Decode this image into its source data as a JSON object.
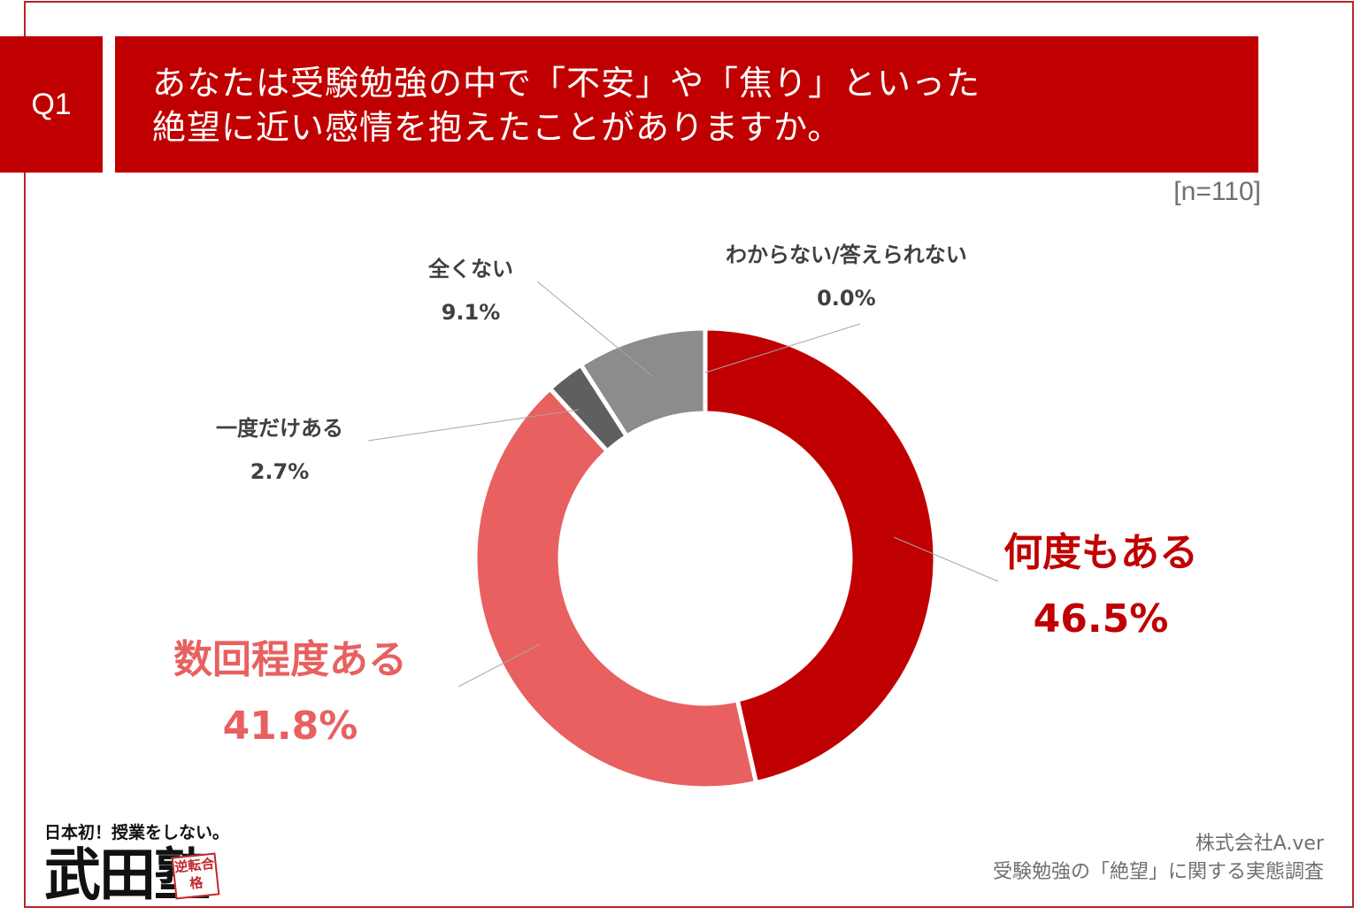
{
  "header": {
    "badge": "Q1",
    "question_line1": "あなたは受験勉強の中で「不安」や「焦り」といった",
    "question_line2": "絶望に近い感情を抱えたことがありますか。",
    "sample_size": "[n=110]"
  },
  "chart_data": {
    "type": "donut",
    "slices": [
      {
        "name": "何度もある",
        "value": 46.5,
        "label": "46.5%",
        "color": "#c00000"
      },
      {
        "name": "数回程度ある",
        "value": 41.8,
        "label": "41.8%",
        "color": "#e86060"
      },
      {
        "name": "一度だけある",
        "value": 2.7,
        "label": "2.7%",
        "color": "#5f5f5f"
      },
      {
        "name": "全くない",
        "value": 9.1,
        "label": "9.1%",
        "color": "#8c8c8c"
      },
      {
        "name": "わからない/答えられない",
        "value": 0.0,
        "label": "0.0%",
        "color": "#bfbfbf"
      }
    ]
  },
  "footer": {
    "logo_tagline": "日本初！授業をしない。",
    "logo_name": "武田塾",
    "logo_seal": "逆転合格",
    "source_company": "株式会社A.ver",
    "source_title": "受験勉強の「絶望」に関する実態調査"
  }
}
